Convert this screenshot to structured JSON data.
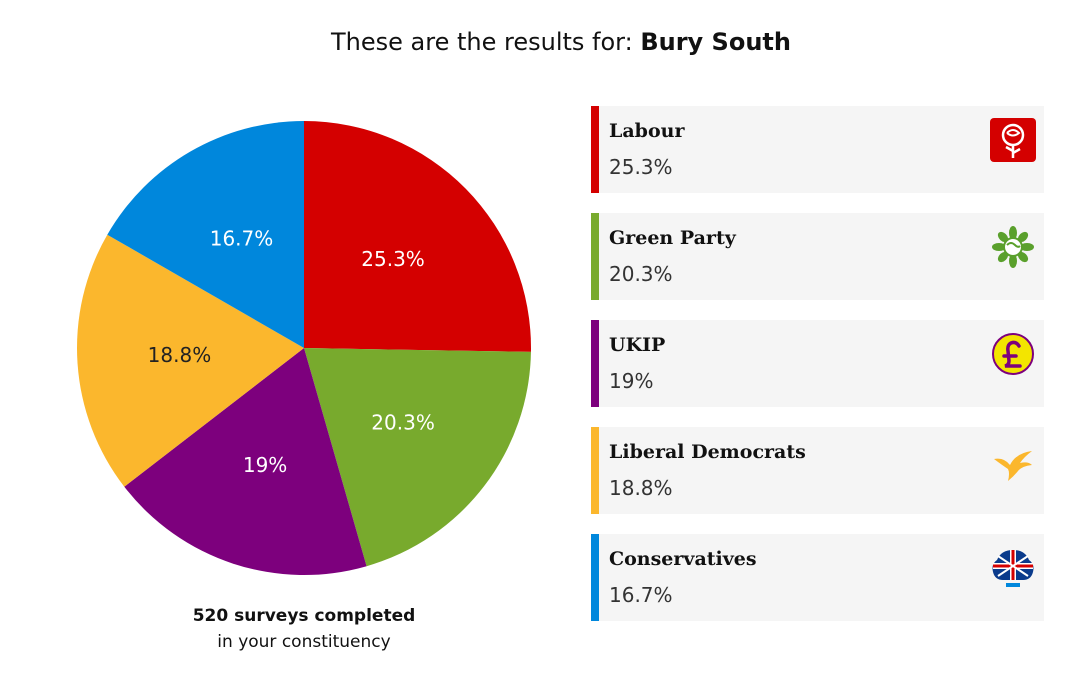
{
  "header": {
    "prefix": "These are the results for:",
    "constituency": "Bury South"
  },
  "chart_data": {
    "type": "pie",
    "categories": [
      "Labour",
      "Green Party",
      "UKIP",
      "Liberal Democrats",
      "Conservatives"
    ],
    "values": [
      25.3,
      20.3,
      19,
      18.8,
      16.7
    ],
    "labels": [
      "25.3%",
      "20.3%",
      "19%",
      "18.8%",
      "16.7%"
    ],
    "colors": [
      "#d40000",
      "#78aa2d",
      "#7d007d",
      "#fbb72d",
      "#0087dc"
    ],
    "label_colors": [
      "#ffffff",
      "#ffffff",
      "#ffffff",
      "#222222",
      "#ffffff"
    ],
    "start": "12 o'clock",
    "direction": "clockwise"
  },
  "footer": {
    "count_line": "520 surveys completed",
    "sub_line": "in your constituency"
  },
  "legend": {
    "items": [
      {
        "name": "Labour",
        "value": "25.3%",
        "color": "#d40000",
        "icon": "rose-icon"
      },
      {
        "name": "Green Party",
        "value": "20.3%",
        "color": "#78aa2d",
        "icon": "globe-leaf-icon"
      },
      {
        "name": "UKIP",
        "value": "19%",
        "color": "#7d007d",
        "icon": "pound-sign-icon"
      },
      {
        "name": "Liberal Democrats",
        "value": "18.8%",
        "color": "#fbb72d",
        "icon": "bird-icon"
      },
      {
        "name": "Conservatives",
        "value": "16.7%",
        "color": "#0087dc",
        "icon": "union-tree-icon"
      }
    ]
  }
}
